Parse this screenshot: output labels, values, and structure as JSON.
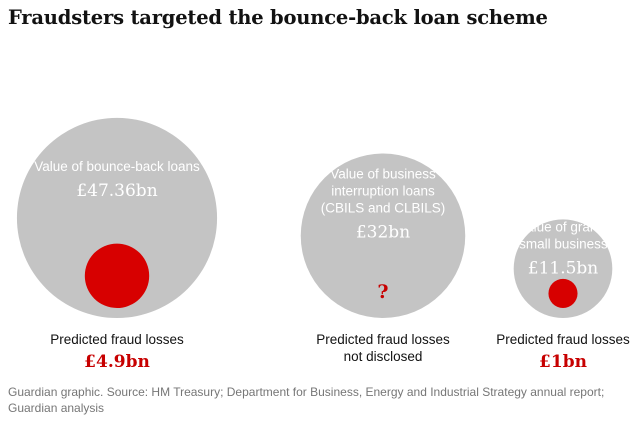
{
  "title": "Fraudsters targeted the bounce-back loan scheme",
  "footer": {
    "line1": "Guardian graphic. Source: HM Treasury; Department for Business, Energy and Industrial Strategy annual report;",
    "line2": "Guardian analysis"
  },
  "colors": {
    "circle": "#c4c4c4",
    "fraud": "#d70000",
    "text_red": "#c70000"
  },
  "chart_data": {
    "type": "bubble",
    "unit": "£bn",
    "items": [
      {
        "label_lines": [
          "Value of bounce-back loans"
        ],
        "value_label": "£47.36bn",
        "value": 47.36,
        "fraud_label_lines": [
          "Predicted fraud losses"
        ],
        "fraud_value_label": "£4.9bn",
        "fraud_value": 4.9
      },
      {
        "label_lines": [
          "Value of business",
          "interruption loans",
          "(CBILS and CLBILS)"
        ],
        "value_label": "£32bn",
        "value": 32,
        "fraud_label_lines": [
          "Predicted fraud losses",
          "not disclosed"
        ],
        "fraud_value_label": "?",
        "fraud_value": null
      },
      {
        "label_lines": [
          "Value of grants",
          "to small businesses"
        ],
        "value_label": "£11.5bn",
        "value": 11.5,
        "fraud_label_lines": [
          "Predicted fraud losses"
        ],
        "fraud_value_label": "£1bn",
        "fraud_value": 1
      }
    ]
  }
}
